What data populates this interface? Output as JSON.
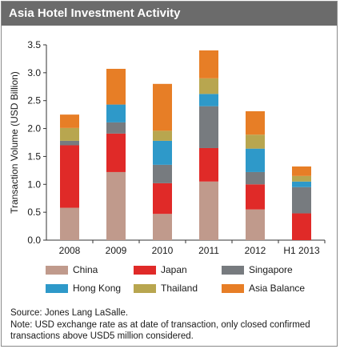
{
  "header": {
    "title": "Asia Hotel Investment Activity"
  },
  "chart_data": {
    "type": "bar",
    "stacked": true,
    "categories": [
      "2008",
      "2009",
      "2010",
      "2011",
      "2012",
      "H1 2013"
    ],
    "series": [
      {
        "name": "China",
        "color": "#c09a8c",
        "values": [
          0.58,
          1.22,
          0.47,
          1.05,
          0.55,
          0.0
        ]
      },
      {
        "name": "Japan",
        "color": "#e02a28",
        "values": [
          1.12,
          0.69,
          0.55,
          0.6,
          0.45,
          0.48
        ]
      },
      {
        "name": "Singapore",
        "color": "#777b7f",
        "values": [
          0.08,
          0.2,
          0.33,
          0.75,
          0.22,
          0.47
        ]
      },
      {
        "name": "Hong Kong",
        "color": "#2e99c9",
        "values": [
          0.0,
          0.32,
          0.43,
          0.22,
          0.42,
          0.1
        ]
      },
      {
        "name": "Thailand",
        "color": "#b8a64f",
        "values": [
          0.23,
          0.0,
          0.18,
          0.28,
          0.25,
          0.1
        ]
      },
      {
        "name": "Asia Balance",
        "color": "#e77e26",
        "values": [
          0.24,
          0.64,
          0.84,
          0.5,
          0.42,
          0.17
        ]
      }
    ],
    "ylabel": "Transaction Volume (USD Billion)",
    "xlabel": "",
    "ylim": [
      0,
      3.5
    ],
    "yticks": [
      "0.0",
      "0.5",
      "1.0",
      "1.5",
      "2.0",
      "2.5",
      "3.0",
      "3.5"
    ],
    "grid": false,
    "legend_position": "bottom"
  },
  "footnote": {
    "source": "Source: Jones Lang LaSalle.",
    "note": "Note: USD exchange rate as at date of transaction, only closed confirmed transactions above USD5 million considered."
  }
}
